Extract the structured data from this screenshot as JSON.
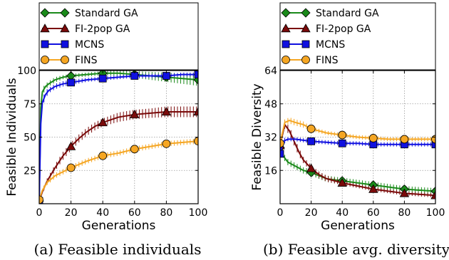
{
  "chart_data": [
    {
      "type": "line",
      "caption": "(a) Feasible individuals",
      "xlabel": "Generations",
      "ylabel": "Feasible Individuals",
      "xlim": [
        0,
        100
      ],
      "ylim": [
        0,
        100
      ],
      "xticks": [
        0,
        20,
        40,
        60,
        80,
        100
      ],
      "yticks": [
        25,
        50,
        75,
        100
      ],
      "grid": true,
      "legend_position": "top",
      "series": [
        {
          "name": "Standard GA",
          "color": "#1a8a1a",
          "marker": "diamond",
          "x": [
            0,
            1,
            2,
            4,
            6,
            10,
            15,
            20,
            30,
            40,
            50,
            60,
            70,
            80,
            90,
            100
          ],
          "y": [
            2,
            72,
            84,
            88,
            90,
            93,
            95,
            96,
            97,
            98,
            98,
            97,
            96,
            95,
            94,
            93
          ],
          "err": [
            0,
            3,
            3,
            2,
            2,
            2,
            1.5,
            1.5,
            1.5,
            1.5,
            2,
            2.5,
            3,
            3.5,
            4,
            4.5
          ],
          "marker_x": [
            0,
            20,
            40,
            60,
            80,
            100
          ]
        },
        {
          "name": "FI-2pop GA",
          "color": "#7a0a0a",
          "marker": "triangle",
          "x": [
            0,
            2,
            5,
            10,
            15,
            20,
            25,
            30,
            35,
            40,
            50,
            60,
            70,
            80,
            90,
            100
          ],
          "y": [
            2,
            9,
            17,
            27,
            36,
            43,
            49,
            54,
            58,
            61,
            65,
            67,
            68,
            69,
            69,
            69
          ],
          "err": [
            0,
            1.5,
            2,
            2.5,
            3,
            3,
            3,
            3,
            3,
            3,
            3.5,
            3.5,
            3.5,
            4,
            4,
            4
          ],
          "marker_x": [
            0,
            20,
            40,
            60,
            80,
            100
          ]
        },
        {
          "name": "MCNS",
          "color": "#1010e0",
          "marker": "square",
          "x": [
            0,
            1,
            2,
            4,
            6,
            10,
            15,
            20,
            30,
            40,
            50,
            60,
            70,
            80,
            90,
            100
          ],
          "y": [
            2,
            60,
            76,
            82,
            85,
            88,
            90,
            91,
            93,
            94,
            95,
            96,
            96,
            96,
            97,
            97
          ],
          "err": [
            0,
            4,
            3,
            3,
            2,
            2,
            2,
            2,
            1.5,
            1.5,
            1.5,
            1.5,
            1.5,
            1.5,
            1.5,
            1.5
          ],
          "marker_x": [
            0,
            20,
            40,
            60,
            80,
            100
          ]
        },
        {
          "name": "FINS",
          "color": "#f5a623",
          "marker": "circle",
          "x": [
            0,
            2,
            5,
            10,
            15,
            20,
            30,
            40,
            50,
            60,
            70,
            80,
            90,
            100
          ],
          "y": [
            3,
            10,
            16,
            21,
            24,
            27,
            32,
            36,
            38,
            41,
            43,
            45,
            46,
            47
          ],
          "err": [
            0,
            1.5,
            2,
            2,
            2,
            2,
            2,
            2,
            2,
            2,
            2,
            2,
            2,
            2
          ],
          "marker_x": [
            0,
            20,
            40,
            60,
            80,
            100
          ]
        }
      ]
    },
    {
      "type": "line",
      "caption": "(b) Feasible avg. diversity",
      "xlabel": "Generations",
      "ylabel": "Feasible Diversity",
      "xlim": [
        0,
        100
      ],
      "ylim": [
        0,
        64
      ],
      "xticks": [
        0,
        20,
        40,
        60,
        80,
        100
      ],
      "yticks": [
        16,
        32,
        48,
        64
      ],
      "grid": true,
      "legend_position": "top",
      "series": [
        {
          "name": "Standard GA",
          "color": "#1a8a1a",
          "marker": "diamond",
          "x": [
            0,
            2,
            5,
            10,
            15,
            20,
            30,
            40,
            50,
            60,
            70,
            80,
            90,
            100
          ],
          "y": [
            27,
            23,
            20,
            18,
            16,
            15,
            12,
            11,
            10,
            9,
            8,
            7,
            6.5,
            6
          ],
          "err": [
            0.8,
            1.5,
            1.5,
            1.5,
            1.5,
            1.5,
            1.5,
            1.5,
            1.5,
            1.5,
            1.5,
            1.5,
            1.5,
            1.5
          ],
          "marker_x": [
            0,
            20,
            40,
            60,
            80,
            100
          ]
        },
        {
          "name": "FI-2pop GA",
          "color": "#7a0a0a",
          "marker": "triangle",
          "x": [
            0,
            3,
            6,
            9,
            12,
            15,
            20,
            25,
            30,
            40,
            50,
            60,
            70,
            80,
            90,
            100
          ],
          "y": [
            28,
            38,
            35,
            30,
            25,
            21,
            17,
            14,
            12,
            10,
            8.5,
            7,
            6,
            5,
            4.5,
            4
          ],
          "err": [
            1,
            2,
            2,
            2,
            2,
            1.5,
            1.5,
            1.5,
            1.5,
            1,
            1,
            1,
            1,
            1,
            1,
            1
          ],
          "marker_x": [
            0,
            20,
            40,
            60,
            80,
            100
          ]
        },
        {
          "name": "MCNS",
          "color": "#1010e0",
          "marker": "square",
          "x": [
            0,
            2,
            5,
            10,
            15,
            20,
            30,
            40,
            50,
            60,
            70,
            80,
            90,
            100
          ],
          "y": [
            24,
            30,
            31,
            31,
            30.5,
            30,
            29.5,
            29,
            29,
            28.5,
            28.5,
            28.5,
            28.5,
            28.5
          ],
          "err": [
            2,
            1.5,
            1,
            1,
            1,
            1,
            1,
            1,
            1,
            1,
            1,
            1,
            1,
            1
          ],
          "marker_x": [
            0,
            20,
            40,
            60,
            80,
            100
          ]
        },
        {
          "name": "FINS",
          "color": "#f5a623",
          "marker": "circle",
          "x": [
            0,
            3,
            6,
            10,
            15,
            20,
            30,
            40,
            50,
            60,
            70,
            80,
            90,
            100
          ],
          "y": [
            29,
            39,
            40,
            39,
            38,
            36,
            34,
            33,
            32,
            31.5,
            31,
            31,
            31,
            31
          ],
          "err": [
            1,
            1.5,
            1.5,
            1.5,
            1.5,
            1,
            1,
            1,
            1,
            1,
            1,
            1,
            1,
            1
          ],
          "marker_x": [
            0,
            20,
            40,
            60,
            80,
            100
          ]
        }
      ]
    }
  ]
}
